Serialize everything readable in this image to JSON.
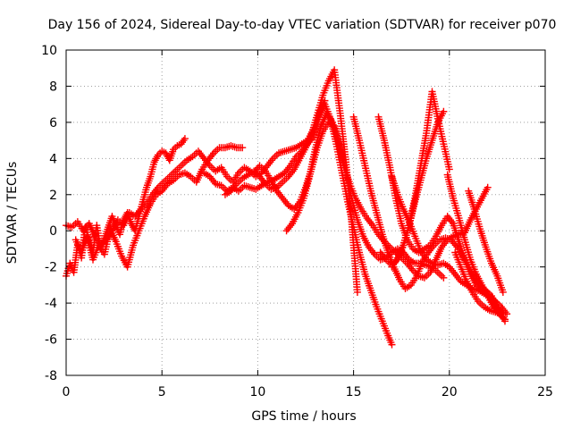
{
  "chart_data": {
    "type": "scatter",
    "title": "Day 156 of 2024, Sidereal Day-to-day VTEC variation (SDTVAR) for receiver p070",
    "xlabel": "GPS time / hours",
    "ylabel": "SDTVAR / TECUs",
    "xlim": [
      0,
      25
    ],
    "ylim": [
      -8,
      10
    ],
    "xticks": [
      "0",
      "5",
      "10",
      "15",
      "20",
      "25"
    ],
    "yticks": [
      "-8",
      "-6",
      "-4",
      "-2",
      "0",
      "2",
      "4",
      "6",
      "8",
      "10"
    ],
    "grid": true,
    "marker": "plus",
    "series_color": "#ff0000",
    "series": [
      {
        "x": [
          0.0,
          0.2,
          0.4,
          0.6,
          0.8,
          1.0,
          1.2,
          1.4,
          1.6,
          1.8,
          2.0,
          2.2,
          2.4,
          2.6,
          2.8,
          3.0,
          3.2,
          3.4,
          3.6,
          3.8,
          4.0,
          4.2,
          4.4,
          4.6,
          4.8,
          5.0,
          5.2,
          5.4,
          5.6,
          5.8,
          6.0,
          6.2
        ],
        "y": [
          -2.5,
          -1.8,
          -2.3,
          -0.8,
          -1.5,
          0.2,
          -0.5,
          -1.2,
          0.3,
          -1.0,
          -0.4,
          0.2,
          0.8,
          0.3,
          -0.2,
          0.6,
          1.0,
          0.4,
          0.0,
          0.8,
          1.6,
          2.4,
          3.0,
          3.8,
          4.2,
          4.4,
          4.3,
          3.9,
          4.5,
          4.7,
          4.8,
          5.1
        ]
      },
      {
        "x": [
          0.0,
          0.3,
          0.6,
          0.9,
          1.2,
          1.5,
          1.8,
          2.1,
          2.4,
          2.7,
          3.0,
          3.3,
          3.6,
          3.9,
          4.2,
          4.5,
          4.8,
          5.1,
          5.4,
          5.7,
          6.0,
          6.3,
          6.6,
          6.9,
          7.2,
          7.5,
          7.8,
          8.1,
          8.4,
          8.7,
          9.0,
          9.3,
          9.6,
          9.9,
          10.2,
          10.5,
          10.8,
          11.1,
          11.4,
          11.7,
          12.0,
          12.3,
          12.6,
          12.9,
          13.2,
          13.5
        ],
        "y": [
          0.3,
          0.2,
          0.5,
          0.0,
          0.4,
          -0.3,
          -0.8,
          -0.5,
          0.0,
          0.6,
          0.3,
          1.0,
          0.8,
          1.2,
          1.5,
          2.0,
          2.4,
          2.7,
          3.0,
          3.3,
          3.6,
          3.9,
          4.1,
          4.4,
          4.0,
          3.6,
          3.3,
          3.5,
          3.0,
          2.7,
          3.2,
          3.5,
          3.3,
          3.0,
          3.2,
          3.6,
          4.0,
          4.3,
          4.4,
          4.5,
          4.6,
          4.8,
          5.0,
          5.6,
          6.5,
          7.2
        ]
      },
      {
        "x": [
          0.5,
          0.8,
          1.1,
          1.4,
          1.7,
          2.0,
          2.3,
          2.6,
          2.9,
          3.2,
          3.5,
          3.8,
          4.1,
          4.4,
          4.7,
          5.0,
          5.3,
          5.6,
          5.9,
          6.2,
          6.5,
          6.8,
          7.1,
          7.4,
          7.7,
          8.0,
          8.3,
          8.6,
          8.9,
          9.2
        ],
        "y": [
          -0.5,
          -1.2,
          -0.3,
          -1.6,
          -0.8,
          -1.3,
          0.1,
          -0.6,
          -1.4,
          -2.0,
          -0.8,
          0.0,
          0.8,
          1.5,
          2.0,
          2.2,
          2.6,
          2.8,
          3.1,
          3.2,
          3.0,
          2.7,
          3.4,
          3.9,
          4.3,
          4.6,
          4.6,
          4.7,
          4.6,
          4.6
        ]
      },
      {
        "x": [
          7.2,
          7.5,
          7.8,
          8.1,
          8.4,
          8.7,
          9.0,
          9.3,
          9.6,
          9.9,
          10.2,
          10.5,
          10.8,
          11.1,
          11.4,
          11.7,
          12.0,
          12.3,
          12.6,
          12.9,
          13.2,
          13.5,
          13.8,
          14.1,
          14.4,
          14.7,
          15.0,
          15.3,
          15.6,
          15.9,
          16.2,
          16.5,
          16.8,
          17.0
        ],
        "y": [
          3.2,
          3.0,
          2.6,
          2.5,
          2.2,
          2.4,
          2.2,
          2.5,
          2.4,
          2.3,
          2.5,
          2.7,
          2.8,
          3.0,
          3.2,
          3.6,
          4.1,
          4.4,
          4.8,
          5.2,
          6.3,
          7.0,
          6.2,
          4.8,
          3.2,
          1.6,
          0.2,
          -1.2,
          -2.4,
          -3.3,
          -4.2,
          -5.0,
          -5.8,
          -6.3
        ]
      },
      {
        "x": [
          8.3,
          8.6,
          8.9,
          9.2,
          9.5,
          9.8,
          10.1,
          10.4,
          10.7,
          11.0,
          11.3,
          11.6,
          11.9,
          12.2,
          12.5,
          12.8,
          13.1,
          13.4,
          13.7,
          14.0,
          14.3,
          14.6,
          14.9,
          15.2
        ],
        "y": [
          2.0,
          2.2,
          2.6,
          2.9,
          3.1,
          3.3,
          3.0,
          2.6,
          2.3,
          2.4,
          2.7,
          3.0,
          3.4,
          4.0,
          4.6,
          5.3,
          6.4,
          7.5,
          8.3,
          8.9,
          6.5,
          3.8,
          0.5,
          -3.4
        ]
      },
      {
        "x": [
          9.8,
          10.1,
          10.4,
          10.7,
          11.0,
          11.3,
          11.6,
          11.9,
          12.2,
          12.5,
          12.8,
          13.1,
          13.4,
          13.7,
          14.0,
          14.3,
          14.6,
          14.9,
          15.2,
          15.5,
          15.8,
          16.1,
          16.4,
          16.7,
          17.0,
          17.3,
          17.6,
          17.9,
          18.2,
          18.5,
          18.8,
          19.1,
          19.4,
          19.7
        ],
        "y": [
          3.2,
          3.6,
          3.3,
          2.8,
          2.2,
          1.8,
          1.4,
          1.2,
          1.6,
          2.4,
          3.4,
          4.6,
          5.5,
          6.0,
          5.8,
          4.6,
          3.2,
          1.8,
          0.6,
          -0.3,
          -0.9,
          -1.3,
          -1.6,
          -1.5,
          -1.2,
          -1.0,
          -1.2,
          -1.6,
          -1.8,
          -1.8,
          -1.9,
          -2.0,
          -2.3,
          -2.6
        ]
      },
      {
        "x": [
          11.5,
          11.8,
          12.1,
          12.4,
          12.7,
          13.0,
          13.3,
          13.6,
          13.9,
          14.2,
          14.5,
          14.8,
          15.1,
          15.4,
          15.7,
          16.0,
          16.3,
          16.6,
          16.9,
          17.2,
          17.5,
          17.8,
          18.1,
          18.4,
          18.7,
          19.0,
          19.3,
          19.6,
          19.9,
          20.2,
          20.5,
          20.8,
          21.1,
          21.4,
          21.7,
          22.0
        ],
        "y": [
          0.0,
          0.4,
          1.0,
          1.8,
          3.0,
          4.5,
          5.8,
          6.5,
          6.0,
          4.8,
          3.6,
          2.6,
          1.8,
          1.2,
          0.7,
          0.3,
          -0.2,
          -0.6,
          -0.9,
          -1.2,
          -1.5,
          -1.8,
          -2.2,
          -2.5,
          -2.6,
          -2.3,
          -1.6,
          -0.9,
          -0.5,
          -0.3,
          -0.2,
          -0.1,
          0.6,
          1.2,
          1.8,
          2.4
        ]
      },
      {
        "x": [
          15.0,
          15.3,
          15.6,
          15.9,
          16.2,
          16.5,
          16.8,
          17.1,
          17.4,
          17.7,
          18.0,
          18.3,
          18.6,
          18.9,
          19.2,
          19.5,
          19.8,
          20.1,
          20.4,
          20.7,
          21.0,
          21.3,
          21.6,
          21.9,
          22.2,
          22.5,
          22.8
        ],
        "y": [
          6.3,
          5.0,
          3.6,
          2.2,
          1.0,
          -0.2,
          -1.2,
          -2.0,
          -2.7,
          -3.2,
          -3.0,
          -2.5,
          -1.7,
          -1.2,
          -0.8,
          -0.5,
          -0.4,
          -0.5,
          -0.9,
          -1.4,
          -2.0,
          -2.6,
          -3.0,
          -3.3,
          -3.6,
          -4.2,
          -4.6
        ]
      },
      {
        "x": [
          16.3,
          16.6,
          16.9,
          17.2,
          17.5,
          17.8,
          18.1,
          18.4,
          18.7,
          19.0,
          19.3,
          19.6,
          19.9,
          20.2,
          20.5,
          20.8,
          21.1,
          21.4,
          21.7,
          22.0,
          22.3,
          22.6,
          22.9
        ],
        "y": [
          6.3,
          5.0,
          3.5,
          1.8,
          0.4,
          -0.5,
          -1.0,
          -1.2,
          -1.0,
          -0.8,
          -0.3,
          0.3,
          0.8,
          0.4,
          -0.6,
          -1.6,
          -2.4,
          -3.0,
          -3.4,
          -3.6,
          -4.0,
          -4.5,
          -5.0
        ]
      },
      {
        "x": [
          17.0,
          17.3,
          17.6,
          17.9,
          18.2,
          18.5,
          18.8,
          19.1,
          19.4,
          19.7,
          20.0,
          20.3,
          20.6,
          20.9,
          21.2,
          21.5,
          21.8,
          22.1,
          22.4,
          22.7,
          23.0
        ],
        "y": [
          3.0,
          2.0,
          1.2,
          0.5,
          -0.3,
          -1.1,
          -1.6,
          -1.8,
          -1.9,
          -1.8,
          -2.0,
          -2.4,
          -2.8,
          -3.0,
          -3.2,
          -3.3,
          -3.4,
          -3.6,
          -3.9,
          -4.2,
          -4.6
        ]
      },
      {
        "x": [
          16.4,
          16.7,
          17.0,
          17.3,
          17.6,
          17.9,
          18.2,
          18.5,
          18.8,
          19.1,
          19.4,
          19.7
        ],
        "y": [
          -1.2,
          -1.6,
          -1.9,
          -1.6,
          -0.8,
          0.3,
          1.6,
          2.8,
          4.0,
          5.0,
          6.0,
          6.6
        ]
      },
      {
        "x": [
          17.0,
          17.3,
          17.6,
          17.9,
          18.2,
          18.5,
          18.8,
          19.1,
          19.4,
          19.7,
          20.0
        ],
        "y": [
          -2.0,
          -1.5,
          -0.8,
          0.3,
          1.8,
          3.6,
          5.4,
          7.7,
          6.2,
          4.8,
          3.4
        ]
      },
      {
        "x": [
          19.9,
          20.2,
          20.5,
          20.8,
          21.1,
          21.4,
          21.7,
          22.0,
          22.3,
          22.6,
          22.9
        ],
        "y": [
          3.1,
          1.8,
          0.7,
          -0.5,
          -1.6,
          -2.4,
          -3.0,
          -3.6,
          -4.2,
          -4.6,
          -4.9
        ]
      },
      {
        "x": [
          20.3,
          20.6,
          20.9,
          21.2,
          21.5,
          21.8,
          22.1,
          22.4,
          22.7
        ],
        "y": [
          -1.2,
          -2.0,
          -2.8,
          -3.4,
          -3.9,
          -4.2,
          -4.4,
          -4.5,
          -4.6
        ]
      },
      {
        "x": [
          21.0,
          21.3,
          21.6,
          21.9,
          22.2,
          22.5,
          22.8
        ],
        "y": [
          2.2,
          1.2,
          0.1,
          -0.9,
          -1.8,
          -2.5,
          -3.4
        ]
      }
    ]
  }
}
